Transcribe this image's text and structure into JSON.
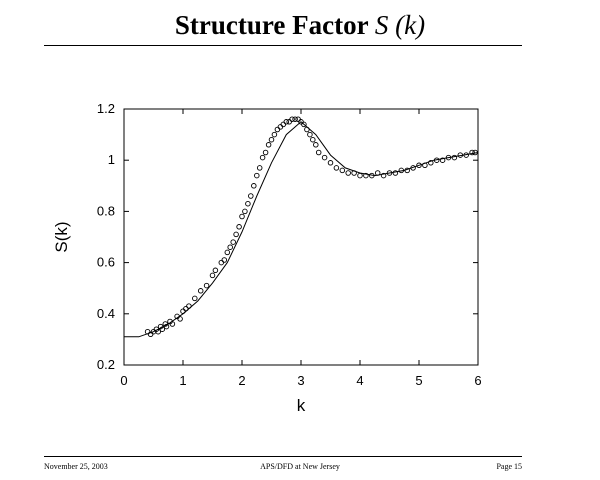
{
  "slide": {
    "title_text": "Structure Factor",
    "title_math": "S (k)"
  },
  "footer": {
    "date": "November 25, 2003",
    "venue": "APS/DFD at New Jersey",
    "page": "Page 15"
  },
  "colors": {
    "ink": "#000000",
    "background": "#ffffff"
  },
  "chart_data": {
    "type": "scatter",
    "title": "",
    "xlabel": "k",
    "ylabel": "S(k)",
    "xlim": [
      0,
      6
    ],
    "ylim": [
      0.2,
      1.2
    ],
    "x_ticks": [
      0,
      1,
      2,
      3,
      4,
      5,
      6
    ],
    "y_ticks": [
      0.2,
      0.4,
      0.6,
      0.8,
      1,
      1.2
    ],
    "x_tick_labels": [
      "0",
      "1",
      "2",
      "3",
      "4",
      "5",
      "6"
    ],
    "y_tick_labels": [
      "0.2",
      "0.4",
      "0.6",
      "0.8",
      "1",
      "1.2"
    ],
    "grid": false,
    "legend": "none",
    "series": [
      {
        "style": "markers",
        "x": [
          0.4,
          0.45,
          0.5,
          0.55,
          0.58,
          0.62,
          0.65,
          0.7,
          0.72,
          0.78,
          0.82,
          0.9,
          0.95,
          1.0,
          1.05,
          1.1,
          1.2,
          1.3,
          1.4,
          1.5,
          1.55,
          1.65,
          1.7,
          1.75,
          1.8,
          1.85,
          1.9,
          1.95,
          2.0,
          2.05,
          2.1,
          2.15,
          2.2,
          2.25,
          2.3,
          2.35,
          2.4,
          2.45,
          2.5,
          2.55,
          2.6,
          2.65,
          2.7,
          2.75,
          2.8,
          2.85,
          2.9,
          2.95,
          3.0,
          3.05,
          3.1,
          3.15,
          3.2,
          3.25,
          3.3,
          3.4,
          3.5,
          3.6,
          3.7,
          3.8,
          3.9,
          4.0,
          4.1,
          4.2,
          4.3,
          4.4,
          4.5,
          4.6,
          4.7,
          4.8,
          4.9,
          5.0,
          5.1,
          5.2,
          5.3,
          5.4,
          5.5,
          5.6,
          5.7,
          5.8,
          5.9,
          5.95
        ],
        "y": [
          0.33,
          0.32,
          0.33,
          0.34,
          0.33,
          0.35,
          0.34,
          0.36,
          0.35,
          0.37,
          0.36,
          0.39,
          0.38,
          0.41,
          0.42,
          0.43,
          0.46,
          0.49,
          0.51,
          0.55,
          0.57,
          0.6,
          0.61,
          0.64,
          0.66,
          0.68,
          0.71,
          0.74,
          0.78,
          0.8,
          0.83,
          0.86,
          0.9,
          0.94,
          0.97,
          1.01,
          1.03,
          1.06,
          1.08,
          1.1,
          1.12,
          1.13,
          1.14,
          1.15,
          1.15,
          1.16,
          1.16,
          1.16,
          1.15,
          1.14,
          1.12,
          1.1,
          1.08,
          1.06,
          1.03,
          1.01,
          0.99,
          0.97,
          0.96,
          0.95,
          0.95,
          0.94,
          0.94,
          0.94,
          0.95,
          0.94,
          0.95,
          0.95,
          0.96,
          0.96,
          0.97,
          0.98,
          0.98,
          0.99,
          1.0,
          1.0,
          1.01,
          1.01,
          1.02,
          1.02,
          1.03,
          1.03
        ]
      },
      {
        "style": "line",
        "x": [
          0.0,
          0.25,
          0.5,
          0.75,
          1.0,
          1.25,
          1.5,
          1.75,
          2.0,
          2.25,
          2.5,
          2.75,
          3.0,
          3.25,
          3.5,
          3.75,
          4.0,
          4.25,
          4.5,
          4.75,
          5.0,
          5.25,
          5.5,
          5.75,
          6.0
        ],
        "y": [
          0.31,
          0.31,
          0.33,
          0.36,
          0.4,
          0.45,
          0.52,
          0.6,
          0.72,
          0.86,
          0.99,
          1.1,
          1.15,
          1.1,
          1.02,
          0.97,
          0.95,
          0.94,
          0.95,
          0.96,
          0.98,
          1.0,
          1.01,
          1.02,
          1.03
        ]
      }
    ]
  }
}
